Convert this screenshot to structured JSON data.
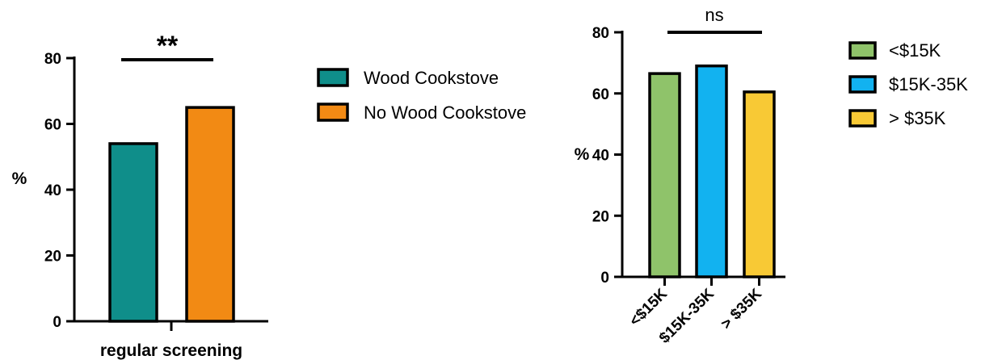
{
  "chart_data": [
    {
      "type": "bar",
      "categories": [
        "regular screening"
      ],
      "series": [
        {
          "name": "Wood Cookstove",
          "values": [
            54
          ],
          "color": "#0F8E8A"
        },
        {
          "name": "No Wood Cookstove",
          "values": [
            65
          ],
          "color": "#F28A14"
        }
      ],
      "xlabel": "regular screening",
      "ylabel": "%",
      "ylim": [
        0,
        80
      ],
      "yticks": [
        0,
        20,
        40,
        60,
        80
      ],
      "significance": "**",
      "legend": "right",
      "grid": false
    },
    {
      "type": "bar",
      "categories": [
        "<$15K",
        "$15K-35K",
        "> $35K"
      ],
      "values": [
        66.5,
        69,
        60.5
      ],
      "colors": [
        "#8FC36A",
        "#12B2F0",
        "#F8C935"
      ],
      "legend_labels": [
        "<$15K",
        "$15K-35K",
        "> $35K"
      ],
      "xlabel": "",
      "ylabel": "%",
      "ylim": [
        0,
        80
      ],
      "yticks": [
        0,
        20,
        40,
        60,
        80
      ],
      "significance": "ns",
      "legend": "right",
      "grid": false
    }
  ]
}
